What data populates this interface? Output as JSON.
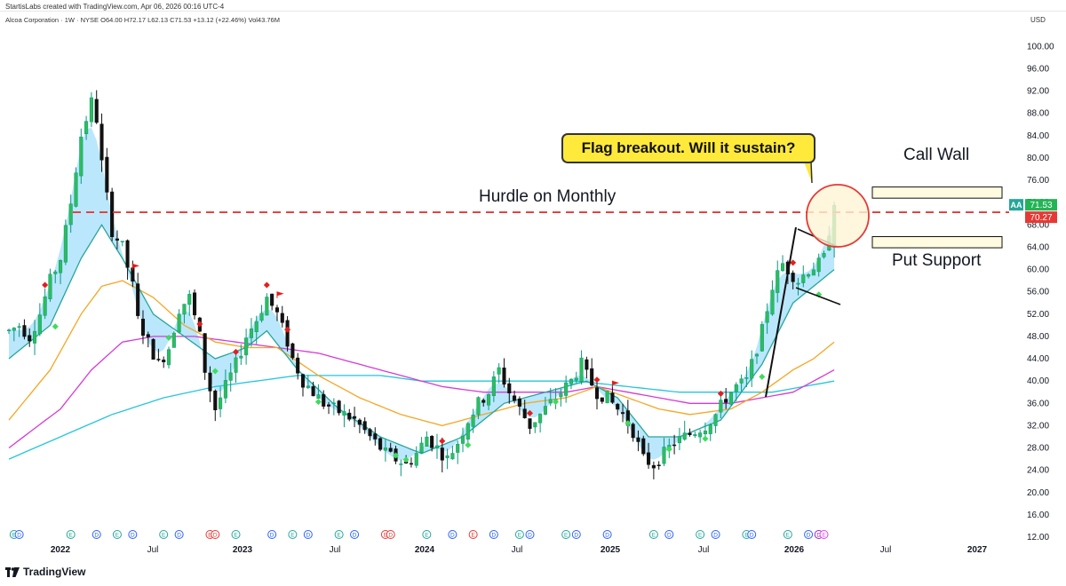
{
  "header": {
    "credit": "StartisLabs created with TradingView.com, Apr 06, 2026 00:16 UTC-4",
    "info": "Alcoa Corporation · 1W · NYSE  O64.00  H72.17  L62.13  C71.53  +13.12 (+22.46%)  Vol43.76M",
    "currency": "USD"
  },
  "footer": {
    "brand": "TradingView"
  },
  "annotations": {
    "callout": "Flag breakout. Will it sustain?",
    "hurdle": "Hurdle on Monthly",
    "call_wall": "Call Wall",
    "put_support": "Put Support"
  },
  "colors": {
    "up": "#089981",
    "up_fill": "#2ebd5a",
    "down": "#111111",
    "hurdle_line": "#e53935",
    "ribbon": "#81d4fa",
    "ema_fast": "#26a69a",
    "ema_orange": "#f5a623",
    "ema_magenta": "#d63ad6",
    "ema_cyan": "#26c6da",
    "callout_bg": "#ffe93a",
    "zone_fill": "#fffbe0"
  },
  "chart_data": {
    "type": "candlestick",
    "symbol": "AA",
    "interval": "1W",
    "y_ticks": [
      12,
      16,
      20,
      24,
      28,
      32,
      36,
      40,
      44,
      48,
      52,
      56,
      60,
      64,
      68,
      72,
      76,
      80,
      84,
      88,
      92,
      96,
      100
    ],
    "ylim": [
      12,
      100
    ],
    "x_ticks": [
      "2022",
      "Jul",
      "2023",
      "Jul",
      "2024",
      "Jul",
      "2025",
      "Jul",
      "2026",
      "Jul",
      "2027"
    ],
    "last_price": {
      "label": "AA",
      "value": "71.53"
    },
    "hurdle_price": {
      "value": "70.27",
      "level": 70.27
    },
    "call_wall": [
      72.8,
      74.8
    ],
    "put_support": [
      63.9,
      65.9
    ],
    "price_path": [
      [
        0,
        49
      ],
      [
        2,
        50
      ],
      [
        4,
        48
      ],
      [
        6,
        52
      ],
      [
        8,
        58
      ],
      [
        10,
        62
      ],
      [
        12,
        72
      ],
      [
        14,
        84
      ],
      [
        16,
        90
      ],
      [
        17,
        87
      ],
      [
        18,
        79
      ],
      [
        19,
        73
      ],
      [
        20,
        67
      ],
      [
        22,
        64
      ],
      [
        24,
        57
      ],
      [
        25,
        51
      ],
      [
        27,
        47
      ],
      [
        29,
        43
      ],
      [
        31,
        46
      ],
      [
        33,
        53
      ],
      [
        35,
        55
      ],
      [
        37,
        48
      ],
      [
        38,
        42
      ],
      [
        40,
        35
      ],
      [
        42,
        39
      ],
      [
        44,
        43
      ],
      [
        46,
        48
      ],
      [
        48,
        51
      ],
      [
        50,
        55
      ],
      [
        52,
        52
      ],
      [
        54,
        47
      ],
      [
        55,
        44
      ],
      [
        57,
        40
      ],
      [
        59,
        38
      ],
      [
        61,
        36
      ],
      [
        63,
        35
      ],
      [
        65,
        34
      ],
      [
        67,
        33
      ],
      [
        69,
        31
      ],
      [
        71,
        29
      ],
      [
        73,
        27
      ],
      [
        75,
        26
      ],
      [
        77,
        25
      ],
      [
        79,
        27
      ],
      [
        81,
        30
      ],
      [
        83,
        28
      ],
      [
        85,
        26
      ],
      [
        87,
        29
      ],
      [
        89,
        33
      ],
      [
        91,
        36
      ],
      [
        93,
        38
      ],
      [
        95,
        42
      ],
      [
        97,
        38
      ],
      [
        99,
        35
      ],
      [
        101,
        32
      ],
      [
        103,
        34
      ],
      [
        105,
        36
      ],
      [
        107,
        38
      ],
      [
        109,
        40
      ],
      [
        111,
        43
      ],
      [
        112,
        41
      ],
      [
        114,
        38
      ],
      [
        116,
        37
      ],
      [
        118,
        35
      ],
      [
        119,
        34
      ],
      [
        121,
        31
      ],
      [
        123,
        26
      ],
      [
        125,
        25
      ],
      [
        127,
        27
      ],
      [
        129,
        29
      ],
      [
        131,
        30
      ],
      [
        133,
        31
      ],
      [
        135,
        32
      ],
      [
        137,
        34
      ],
      [
        139,
        37
      ],
      [
        141,
        39
      ],
      [
        143,
        40
      ],
      [
        145,
        46
      ],
      [
        146,
        49
      ],
      [
        147,
        53
      ],
      [
        148,
        57
      ],
      [
        150,
        61
      ],
      [
        151,
        60
      ],
      [
        153,
        58
      ],
      [
        155,
        60
      ],
      [
        157,
        61
      ],
      [
        158,
        62
      ],
      [
        159,
        67
      ],
      [
        160,
        71.53
      ]
    ],
    "ema_fast": [
      [
        0,
        44
      ],
      [
        8,
        50
      ],
      [
        14,
        62
      ],
      [
        18,
        68
      ],
      [
        22,
        62
      ],
      [
        28,
        52
      ],
      [
        34,
        48
      ],
      [
        40,
        44
      ],
      [
        46,
        46
      ],
      [
        50,
        49
      ],
      [
        56,
        42
      ],
      [
        64,
        35
      ],
      [
        72,
        30
      ],
      [
        80,
        27
      ],
      [
        88,
        30
      ],
      [
        96,
        36
      ],
      [
        104,
        38
      ],
      [
        112,
        40
      ],
      [
        118,
        37
      ],
      [
        124,
        30
      ],
      [
        130,
        30
      ],
      [
        138,
        33
      ],
      [
        146,
        43
      ],
      [
        152,
        54
      ],
      [
        156,
        57
      ],
      [
        160,
        60
      ]
    ],
    "ema_orange": [
      [
        0,
        33
      ],
      [
        8,
        42
      ],
      [
        14,
        52
      ],
      [
        18,
        57
      ],
      [
        22,
        58
      ],
      [
        28,
        55
      ],
      [
        34,
        50
      ],
      [
        40,
        47
      ],
      [
        46,
        46
      ],
      [
        52,
        46
      ],
      [
        60,
        41
      ],
      [
        68,
        37
      ],
      [
        76,
        34
      ],
      [
        84,
        32
      ],
      [
        92,
        34
      ],
      [
        100,
        36
      ],
      [
        108,
        37
      ],
      [
        114,
        39
      ],
      [
        120,
        37
      ],
      [
        126,
        35
      ],
      [
        132,
        34
      ],
      [
        140,
        35
      ],
      [
        146,
        38
      ],
      [
        152,
        42
      ],
      [
        156,
        44
      ],
      [
        160,
        47
      ]
    ],
    "ema_magenta": [
      [
        0,
        28
      ],
      [
        10,
        35
      ],
      [
        16,
        42
      ],
      [
        22,
        47
      ],
      [
        28,
        48
      ],
      [
        36,
        48
      ],
      [
        44,
        47
      ],
      [
        52,
        46
      ],
      [
        60,
        45
      ],
      [
        68,
        43
      ],
      [
        76,
        41
      ],
      [
        84,
        39
      ],
      [
        92,
        38
      ],
      [
        100,
        38
      ],
      [
        108,
        38
      ],
      [
        114,
        39
      ],
      [
        120,
        38
      ],
      [
        126,
        37
      ],
      [
        132,
        36
      ],
      [
        140,
        36
      ],
      [
        146,
        37
      ],
      [
        152,
        38
      ],
      [
        156,
        40
      ],
      [
        160,
        42
      ]
    ],
    "ema_cyan": [
      [
        0,
        26
      ],
      [
        10,
        30
      ],
      [
        20,
        34
      ],
      [
        30,
        37
      ],
      [
        40,
        39
      ],
      [
        48,
        40
      ],
      [
        56,
        41
      ],
      [
        64,
        41
      ],
      [
        72,
        41
      ],
      [
        80,
        40
      ],
      [
        90,
        40
      ],
      [
        100,
        40
      ],
      [
        110,
        40
      ],
      [
        120,
        39
      ],
      [
        130,
        38
      ],
      [
        140,
        38
      ],
      [
        148,
        38
      ],
      [
        154,
        39
      ],
      [
        160,
        40
      ]
    ],
    "e_markers": [
      {
        "week": 1,
        "label": "E",
        "color": "#26a69a"
      },
      {
        "week": 2,
        "label": "D",
        "color": "#2962ff"
      },
      {
        "week": 12,
        "label": "E",
        "color": "#26a69a"
      },
      {
        "week": 17,
        "label": "D",
        "color": "#2962ff"
      },
      {
        "week": 21,
        "label": "E",
        "color": "#26a69a"
      },
      {
        "week": 24,
        "label": "D",
        "color": "#2962ff"
      },
      {
        "week": 30,
        "label": "E",
        "color": "#26a69a"
      },
      {
        "week": 33,
        "label": "D",
        "color": "#2962ff"
      },
      {
        "week": 39,
        "label": "E",
        "color": "#e53935"
      },
      {
        "week": 40,
        "label": "D",
        "color": "#e53935"
      },
      {
        "week": 44,
        "label": "E",
        "color": "#26a69a"
      },
      {
        "week": 51,
        "label": "D",
        "color": "#2962ff"
      },
      {
        "week": 55,
        "label": "E",
        "color": "#26a69a"
      },
      {
        "week": 58,
        "label": "D",
        "color": "#2962ff"
      },
      {
        "week": 64,
        "label": "E",
        "color": "#26a69a"
      },
      {
        "week": 67,
        "label": "D",
        "color": "#2962ff"
      },
      {
        "week": 73,
        "label": "E",
        "color": "#e53935"
      },
      {
        "week": 74,
        "label": "D",
        "color": "#e53935"
      },
      {
        "week": 81,
        "label": "E",
        "color": "#26a69a"
      },
      {
        "week": 86,
        "label": "D",
        "color": "#2962ff"
      },
      {
        "week": 90,
        "label": "E",
        "color": "#e53935"
      },
      {
        "week": 94,
        "label": "D",
        "color": "#2962ff"
      },
      {
        "week": 99,
        "label": "E",
        "color": "#26a69a"
      },
      {
        "week": 101,
        "label": "D",
        "color": "#2962ff"
      },
      {
        "week": 108,
        "label": "E",
        "color": "#26a69a"
      },
      {
        "week": 110,
        "label": "D",
        "color": "#2962ff"
      },
      {
        "week": 116,
        "label": "D",
        "color": "#2962ff"
      },
      {
        "week": 125,
        "label": "E",
        "color": "#26a69a"
      },
      {
        "week": 128,
        "label": "D",
        "color": "#2962ff"
      },
      {
        "week": 134,
        "label": "E",
        "color": "#26a69a"
      },
      {
        "week": 137,
        "label": "D",
        "color": "#2962ff"
      },
      {
        "week": 143,
        "label": "E",
        "color": "#26a69a"
      },
      {
        "week": 144,
        "label": "D",
        "color": "#2962ff"
      },
      {
        "week": 151,
        "label": "E",
        "color": "#26a69a"
      },
      {
        "week": 155,
        "label": "D",
        "color": "#2962ff"
      },
      {
        "week": 157,
        "label": "D",
        "color": "#9c27b0"
      },
      {
        "week": 158,
        "label": "E",
        "color": "#e040fb"
      }
    ]
  }
}
